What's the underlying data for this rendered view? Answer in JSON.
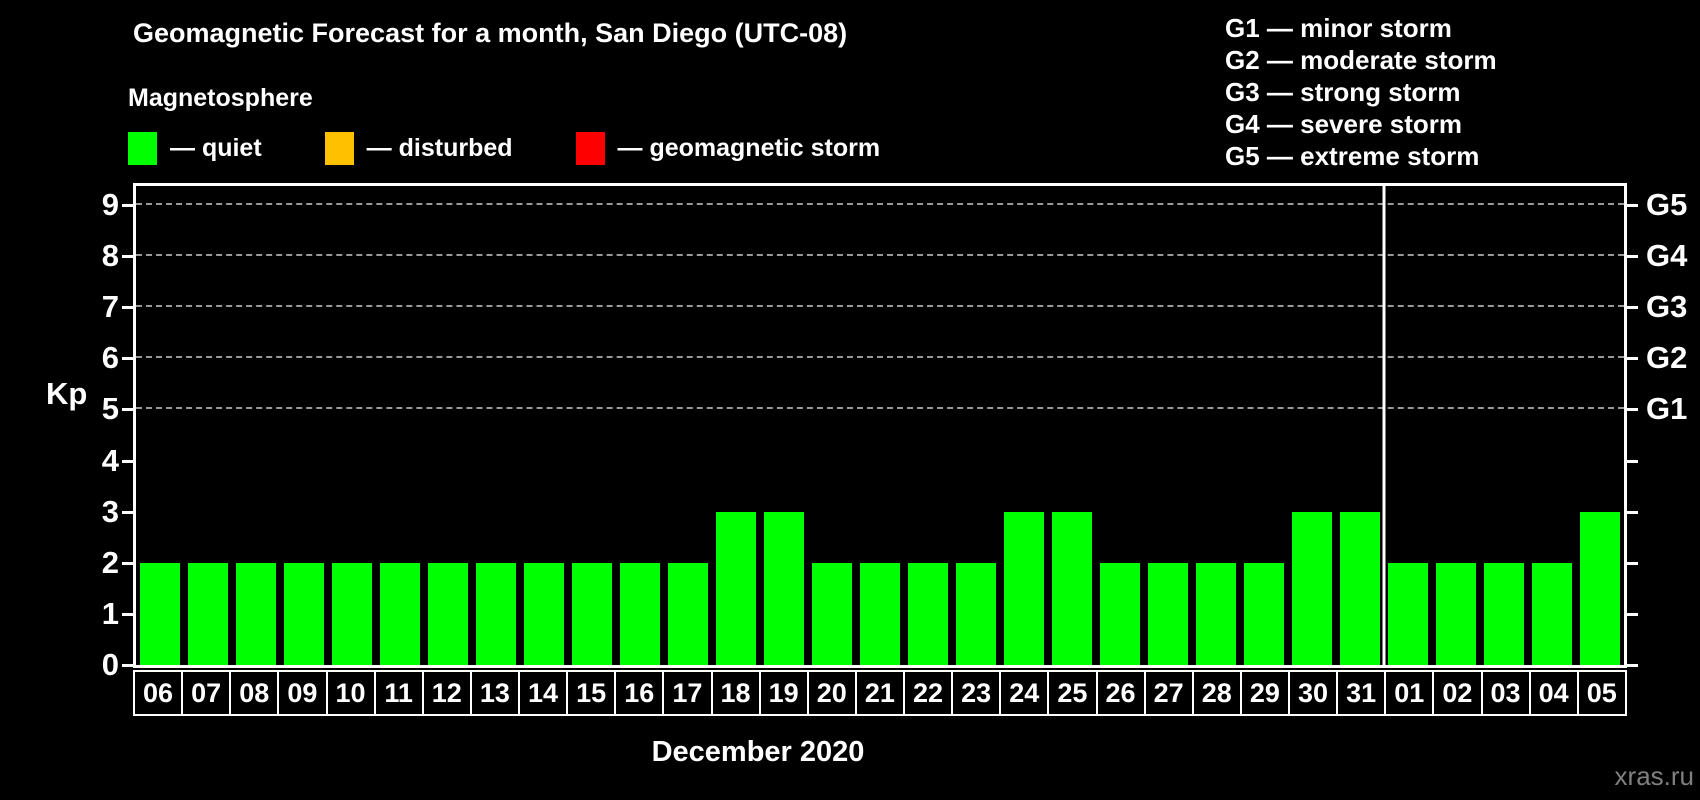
{
  "title": "Geomagnetic Forecast for a month, San Diego (UTC-08)",
  "magnetosphere_legend": {
    "heading": "Magnetosphere",
    "items": [
      {
        "name": "quiet",
        "label": "— quiet",
        "color": "#00ff00"
      },
      {
        "name": "disturbed",
        "label": "— disturbed",
        "color": "#ffc000"
      },
      {
        "name": "geomagnetic-storm",
        "label": "— geomagnetic storm",
        "color": "#ff0000"
      }
    ]
  },
  "storm_scale_legend": [
    "G1 — minor storm",
    "G2 — moderate storm",
    "G3 — strong storm",
    "G4 — severe storm",
    "G5 — extreme storm"
  ],
  "watermark": "xras.ru",
  "chart_data": {
    "type": "bar",
    "title": "Geomagnetic Forecast for a month, San Diego (UTC-08)",
    "xlabel": "December 2020",
    "ylabel": "Kp",
    "ylim": [
      0,
      9
    ],
    "yticks": [
      0,
      1,
      2,
      3,
      4,
      5,
      6,
      7,
      8,
      9
    ],
    "gridlines_at": [
      5,
      6,
      7,
      8,
      9
    ],
    "grid": "dashed-horizontal-above-kp5",
    "legend_position": "top-left",
    "right_axis": [
      {
        "kp": 5,
        "label": "G1"
      },
      {
        "kp": 6,
        "label": "G2"
      },
      {
        "kp": 7,
        "label": "G3"
      },
      {
        "kp": 8,
        "label": "G4"
      },
      {
        "kp": 9,
        "label": "G5"
      }
    ],
    "categories": [
      "06",
      "07",
      "08",
      "09",
      "10",
      "11",
      "12",
      "13",
      "14",
      "15",
      "16",
      "17",
      "18",
      "19",
      "20",
      "21",
      "22",
      "23",
      "24",
      "25",
      "26",
      "27",
      "28",
      "29",
      "30",
      "31",
      "01",
      "02",
      "03",
      "04",
      "05"
    ],
    "values": [
      2,
      2,
      2,
      2,
      2,
      2,
      2,
      2,
      2,
      2,
      2,
      2,
      3,
      3,
      2,
      2,
      2,
      2,
      3,
      3,
      2,
      2,
      2,
      2,
      3,
      3,
      2,
      2,
      2,
      2,
      3
    ],
    "bar_color": "#00ff00",
    "bar_status_all": "quiet",
    "month_separator_after": "31"
  }
}
